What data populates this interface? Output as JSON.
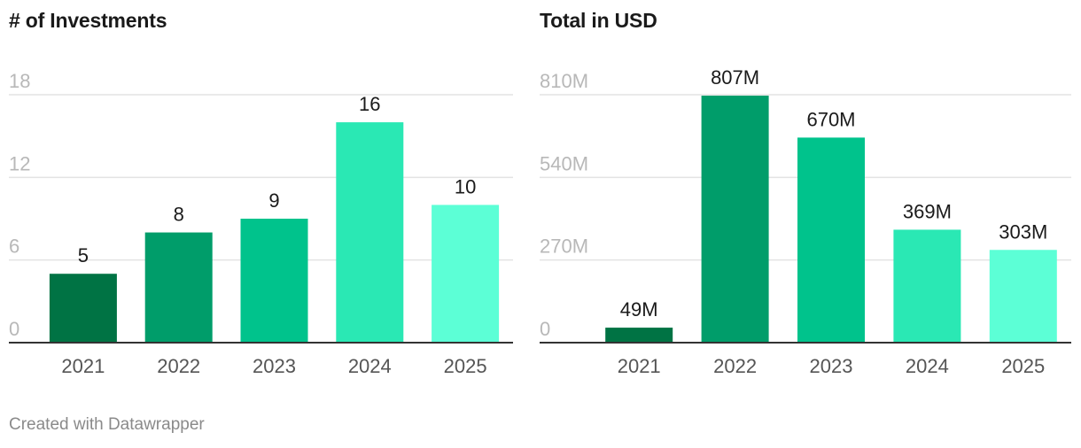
{
  "chart_data": [
    {
      "type": "bar",
      "title": "# of Investments",
      "categories": [
        "2021",
        "2022",
        "2023",
        "2024",
        "2025"
      ],
      "values": [
        5,
        8,
        9,
        16,
        10
      ],
      "value_labels": [
        "5",
        "8",
        "9",
        "16",
        "10"
      ],
      "yticks": [
        0,
        6,
        12,
        18
      ],
      "ytick_labels": [
        "0",
        "6",
        "12",
        "18"
      ],
      "ylim": [
        0,
        18
      ],
      "grid": true,
      "colors": [
        "#007344",
        "#009d6a",
        "#00c38c",
        "#2ae8b4",
        "#5cffd6"
      ]
    },
    {
      "type": "bar",
      "title": "Total in USD",
      "categories": [
        "2021",
        "2022",
        "2023",
        "2024",
        "2025"
      ],
      "values": [
        49,
        807,
        670,
        369,
        303
      ],
      "value_labels": [
        "49M",
        "807M",
        "670M",
        "369M",
        "303M"
      ],
      "yticks": [
        0,
        270,
        540,
        810
      ],
      "ytick_labels": [
        "0",
        "270M",
        "540M",
        "810M"
      ],
      "ylim": [
        0,
        810
      ],
      "grid": true,
      "colors": [
        "#007344",
        "#009d6a",
        "#00c38c",
        "#2ae8b4",
        "#5cffd6"
      ]
    }
  ],
  "footer": "Created with Datawrapper"
}
